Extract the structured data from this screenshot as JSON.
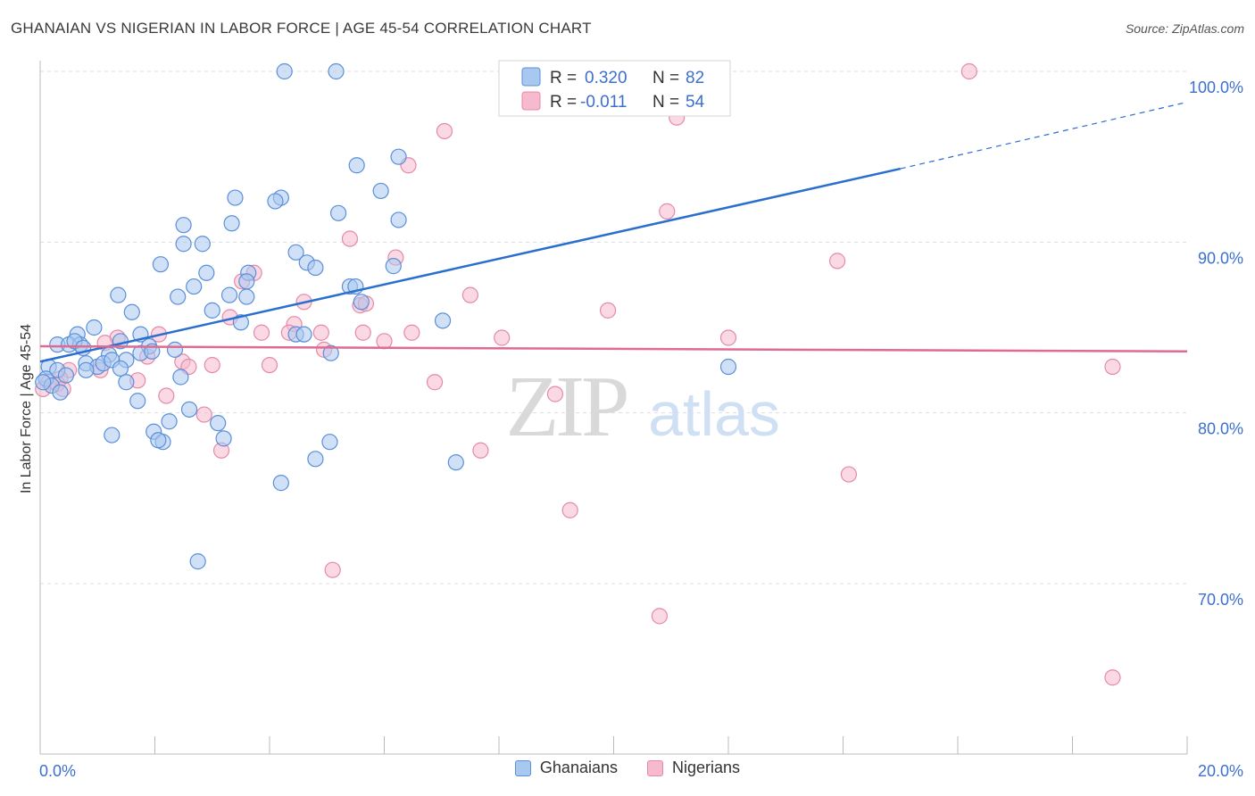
{
  "header": {
    "title": "GHANAIAN VS NIGERIAN IN LABOR FORCE | AGE 45-54 CORRELATION CHART",
    "source": "Source: ZipAtlas.com"
  },
  "watermark": {
    "zip": "ZIP",
    "atlas": "atlas"
  },
  "legend_box": {
    "rows": [
      {
        "r_label": "R = ",
        "r_value": "0.320",
        "n_label": "N = ",
        "n_value": "82"
      },
      {
        "r_label": "R = ",
        "r_value": "-0.011",
        "n_label": "N = ",
        "n_value": "54"
      }
    ]
  },
  "colors": {
    "ghanaian_fill": "#a9c8f0",
    "ghanaian_stroke": "#5b8fd8",
    "ghanaian_line": "#2a6fce",
    "nigerian_fill": "#f6b9cd",
    "nigerian_stroke": "#e48aa8",
    "nigerian_line": "#e06a90",
    "value_text": "#3b6fd0",
    "grid": "#dddddd"
  },
  "chart_data": {
    "type": "scatter",
    "title": "GHANAIAN VS NIGERIAN IN LABOR FORCE | AGE 45-54 CORRELATION CHART",
    "xlabel": "",
    "ylabel": "In Labor Force | Age 45-54",
    "xlim": [
      0,
      20
    ],
    "ylim": [
      60.5,
      101.5
    ],
    "x_tick_labels": [
      "0.0%",
      "20.0%"
    ],
    "y_ticks": [
      70,
      80,
      90,
      100
    ],
    "y_tick_labels": [
      "70.0%",
      "80.0%",
      "90.0%",
      "100.0%"
    ],
    "grid": true,
    "legend_position": "bottom",
    "series": [
      {
        "name": "Ghanaians",
        "trend": {
          "x0": 0,
          "y0": 83.0,
          "x1": 15.0,
          "y1": 94.3,
          "dash_to_x": 20.0,
          "dash_to_y": 98.2
        },
        "points": [
          [
            4.26,
            100.0
          ],
          [
            5.16,
            100.0
          ],
          [
            6.25,
            95.0
          ],
          [
            5.52,
            94.5
          ],
          [
            5.94,
            93.0
          ],
          [
            3.4,
            92.6
          ],
          [
            4.2,
            92.6
          ],
          [
            4.1,
            92.4
          ],
          [
            5.2,
            91.7
          ],
          [
            6.25,
            91.3
          ],
          [
            2.5,
            91.0
          ],
          [
            3.34,
            91.1
          ],
          [
            2.83,
            89.9
          ],
          [
            2.5,
            89.9
          ],
          [
            4.46,
            89.4
          ],
          [
            2.1,
            88.7
          ],
          [
            4.65,
            88.8
          ],
          [
            4.8,
            88.5
          ],
          [
            6.16,
            88.6
          ],
          [
            2.9,
            88.2
          ],
          [
            3.63,
            88.2
          ],
          [
            3.6,
            87.7
          ],
          [
            5.4,
            87.4
          ],
          [
            5.5,
            87.4
          ],
          [
            2.68,
            87.4
          ],
          [
            3.3,
            86.9
          ],
          [
            3.6,
            86.8
          ],
          [
            2.4,
            86.8
          ],
          [
            1.36,
            86.9
          ],
          [
            5.6,
            86.5
          ],
          [
            1.6,
            85.9
          ],
          [
            3.0,
            86.0
          ],
          [
            3.5,
            85.3
          ],
          [
            7.02,
            85.4
          ],
          [
            0.94,
            85.0
          ],
          [
            0.65,
            84.6
          ],
          [
            4.46,
            84.6
          ],
          [
            4.6,
            84.6
          ],
          [
            1.75,
            84.6
          ],
          [
            0.3,
            84.0
          ],
          [
            0.5,
            84.0
          ],
          [
            0.7,
            84.0
          ],
          [
            0.6,
            84.2
          ],
          [
            1.4,
            84.2
          ],
          [
            0.75,
            83.8
          ],
          [
            1.9,
            83.9
          ],
          [
            2.35,
            83.7
          ],
          [
            1.2,
            83.4
          ],
          [
            1.75,
            83.5
          ],
          [
            1.95,
            83.6
          ],
          [
            5.07,
            83.5
          ],
          [
            1.5,
            83.1
          ],
          [
            0.8,
            82.9
          ],
          [
            1.0,
            82.7
          ],
          [
            1.1,
            82.9
          ],
          [
            1.25,
            83.1
          ],
          [
            0.15,
            82.7
          ],
          [
            0.3,
            82.5
          ],
          [
            1.4,
            82.6
          ],
          [
            0.8,
            82.5
          ],
          [
            0.1,
            82.0
          ],
          [
            2.45,
            82.1
          ],
          [
            1.5,
            81.8
          ],
          [
            0.2,
            81.6
          ],
          [
            0.35,
            81.2
          ],
          [
            12.0,
            82.7
          ],
          [
            1.7,
            80.7
          ],
          [
            2.6,
            80.2
          ],
          [
            2.25,
            79.5
          ],
          [
            3.1,
            79.4
          ],
          [
            1.98,
            78.9
          ],
          [
            1.25,
            78.7
          ],
          [
            2.14,
            78.3
          ],
          [
            2.06,
            78.4
          ],
          [
            3.2,
            78.5
          ],
          [
            5.05,
            78.3
          ],
          [
            4.8,
            77.3
          ],
          [
            7.25,
            77.1
          ],
          [
            4.2,
            75.9
          ],
          [
            2.75,
            71.3
          ],
          [
            0.05,
            81.8
          ],
          [
            0.45,
            82.2
          ]
        ]
      },
      {
        "name": "Nigerians",
        "trend": {
          "x0": 0,
          "y0": 83.9,
          "x1": 20.0,
          "y1": 83.6
        },
        "points": [
          [
            16.2,
            100.0
          ],
          [
            11.1,
            97.3
          ],
          [
            7.05,
            96.5
          ],
          [
            6.42,
            94.5
          ],
          [
            10.93,
            91.8
          ],
          [
            5.4,
            90.2
          ],
          [
            6.2,
            89.1
          ],
          [
            13.9,
            88.9
          ],
          [
            3.73,
            88.2
          ],
          [
            3.52,
            87.7
          ],
          [
            7.5,
            86.9
          ],
          [
            4.6,
            86.5
          ],
          [
            5.58,
            86.3
          ],
          [
            5.68,
            86.4
          ],
          [
            9.9,
            86.0
          ],
          [
            3.31,
            85.6
          ],
          [
            4.43,
            85.2
          ],
          [
            3.86,
            84.7
          ],
          [
            4.34,
            84.7
          ],
          [
            4.9,
            84.7
          ],
          [
            5.63,
            84.7
          ],
          [
            6.48,
            84.7
          ],
          [
            2.07,
            84.6
          ],
          [
            1.35,
            84.4
          ],
          [
            8.05,
            84.4
          ],
          [
            12.0,
            84.4
          ],
          [
            6.0,
            84.2
          ],
          [
            1.13,
            84.1
          ],
          [
            4.95,
            83.7
          ],
          [
            1.87,
            83.3
          ],
          [
            2.48,
            83.0
          ],
          [
            0.5,
            82.5
          ],
          [
            1.05,
            82.5
          ],
          [
            2.59,
            82.7
          ],
          [
            3.0,
            82.8
          ],
          [
            4.0,
            82.8
          ],
          [
            18.7,
            82.7
          ],
          [
            0.35,
            82.0
          ],
          [
            1.7,
            81.9
          ],
          [
            6.88,
            81.8
          ],
          [
            0.15,
            81.8
          ],
          [
            0.3,
            81.7
          ],
          [
            0.4,
            81.4
          ],
          [
            8.98,
            81.1
          ],
          [
            2.2,
            81.0
          ],
          [
            0.05,
            81.4
          ],
          [
            2.86,
            79.9
          ],
          [
            3.16,
            77.8
          ],
          [
            7.68,
            77.8
          ],
          [
            14.1,
            76.4
          ],
          [
            9.24,
            74.3
          ],
          [
            5.1,
            70.8
          ],
          [
            10.8,
            68.1
          ],
          [
            18.7,
            64.5
          ]
        ]
      }
    ]
  }
}
